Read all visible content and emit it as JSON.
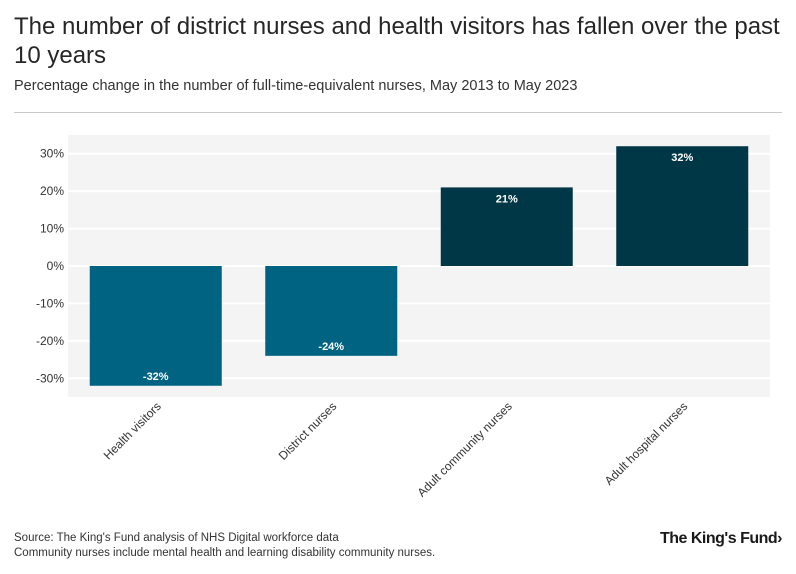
{
  "header": {
    "title": "The number of district nurses and health visitors has fallen over the past 10 years",
    "subtitle": "Percentage change in the number of full-time-equivalent nurses, May 2013 to May 2023"
  },
  "footer": {
    "source": "Source: The King's Fund analysis of NHS Digital workforce data",
    "note": "Community nurses include mental health and learning disability community nurses.",
    "logo": "The King's Fund›"
  },
  "colors": {
    "negative": "#006382",
    "positive": "#003746",
    "panel": "#f4f4f4",
    "grid": "#ffffff",
    "text": "#333333"
  },
  "chart_data": {
    "type": "bar",
    "categories": [
      "Health visitors",
      "District nurses",
      "Adult community nurses",
      "Adult hospital nurses"
    ],
    "values": [
      -32,
      -24,
      21,
      32
    ],
    "data_labels": [
      "-32%",
      "-24%",
      "21%",
      "32%"
    ],
    "yticks": [
      -30,
      -20,
      -10,
      0,
      10,
      20,
      30
    ],
    "ytick_labels": [
      "-30%",
      "-20%",
      "-10%",
      "0%",
      "10%",
      "20%",
      "30%"
    ],
    "ylim": [
      -35,
      35
    ],
    "grid": true,
    "legend": "none"
  }
}
